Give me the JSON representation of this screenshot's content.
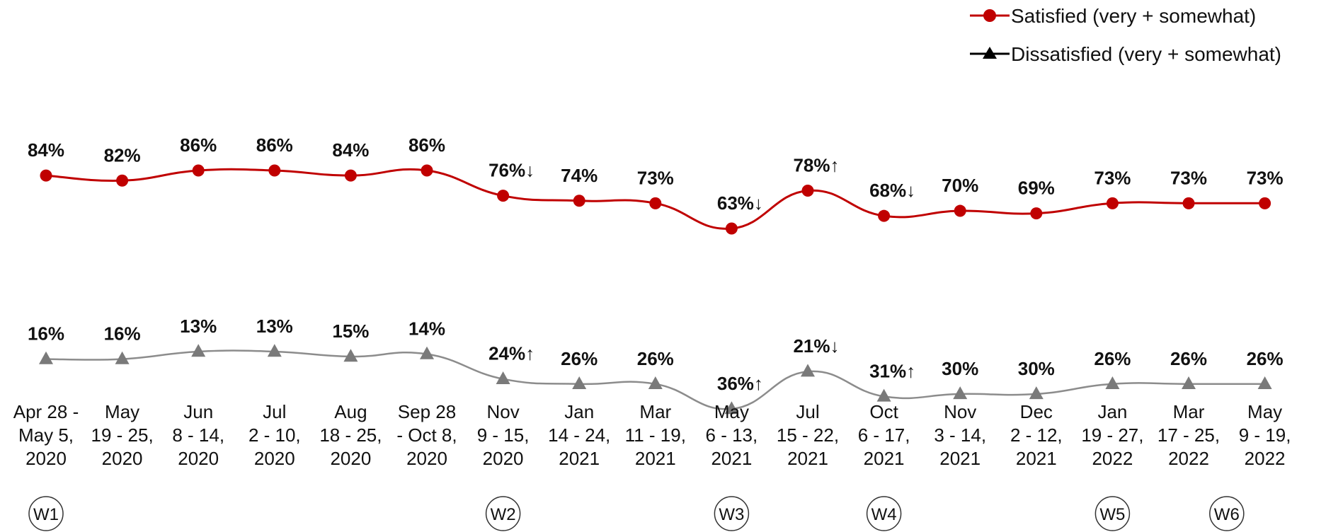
{
  "chart_data": {
    "type": "line",
    "title": "",
    "xlabel": "",
    "ylabel": "",
    "ylim": [
      0,
      100
    ],
    "categories": [
      [
        "Apr 28 -",
        "May 5,",
        "2020"
      ],
      [
        "May",
        "19 - 25,",
        "2020"
      ],
      [
        "Jun",
        "8 - 14,",
        "2020"
      ],
      [
        "Jul",
        "2 - 10,",
        "2020"
      ],
      [
        "Aug",
        "18 - 25,",
        "2020"
      ],
      [
        "Sep 28",
        "- Oct 8,",
        "2020"
      ],
      [
        "Nov",
        "9 - 15,",
        "2020"
      ],
      [
        "Jan",
        "14 - 24,",
        "2021"
      ],
      [
        "Mar",
        "11 - 19,",
        "2021"
      ],
      [
        "May",
        "6 - 13,",
        "2021"
      ],
      [
        "Jul",
        "15 - 22,",
        "2021"
      ],
      [
        "Oct",
        "6 - 17,",
        "2021"
      ],
      [
        "Nov",
        "3 - 14,",
        "2021"
      ],
      [
        "Dec",
        "2 - 12,",
        "2021"
      ],
      [
        "Jan",
        "19 - 27,",
        "2022"
      ],
      [
        "Mar",
        "17 - 25,",
        "2022"
      ],
      [
        "May",
        "9 - 19,",
        "2022"
      ]
    ],
    "series": [
      {
        "name": "Satisfied (very + somewhat)",
        "color": "#c00000",
        "marker": "circle",
        "values": [
          84,
          82,
          86,
          86,
          84,
          86,
          76,
          74,
          73,
          63,
          78,
          68,
          70,
          69,
          73,
          73,
          73
        ],
        "labels": [
          "84%",
          "82%",
          "86%",
          "86%",
          "84%",
          "86%",
          "76%↓",
          "74%",
          "73%",
          "63%↓",
          "78%↑",
          "68%↓",
          "70%",
          "69%",
          "73%",
          "73%",
          "73%"
        ]
      },
      {
        "name": "Dissatisfied (very + somewhat)",
        "color": "#000000",
        "line_color": "#8c8c8c",
        "marker_color": "#7a7a7a",
        "marker": "triangle",
        "values": [
          16,
          16,
          13,
          13,
          15,
          14,
          24,
          26,
          26,
          36,
          21,
          31,
          30,
          30,
          26,
          26,
          26
        ],
        "labels": [
          "16%",
          "16%",
          "13%",
          "13%",
          "15%",
          "14%",
          "24%↑",
          "26%",
          "26%",
          "36%↑",
          "21%↓",
          "31%↑",
          "30%",
          "30%",
          "26%",
          "26%",
          "26%"
        ]
      }
    ],
    "legend_position": "top-right",
    "grid": false,
    "wave_markers": [
      {
        "index": 0,
        "label": "W1"
      },
      {
        "index": 6,
        "label": "W2"
      },
      {
        "index": 9,
        "label": "W3"
      },
      {
        "index": 11,
        "label": "W4"
      },
      {
        "index": 14,
        "label": "W5"
      },
      {
        "index": 15.5,
        "label": "W6"
      }
    ]
  }
}
